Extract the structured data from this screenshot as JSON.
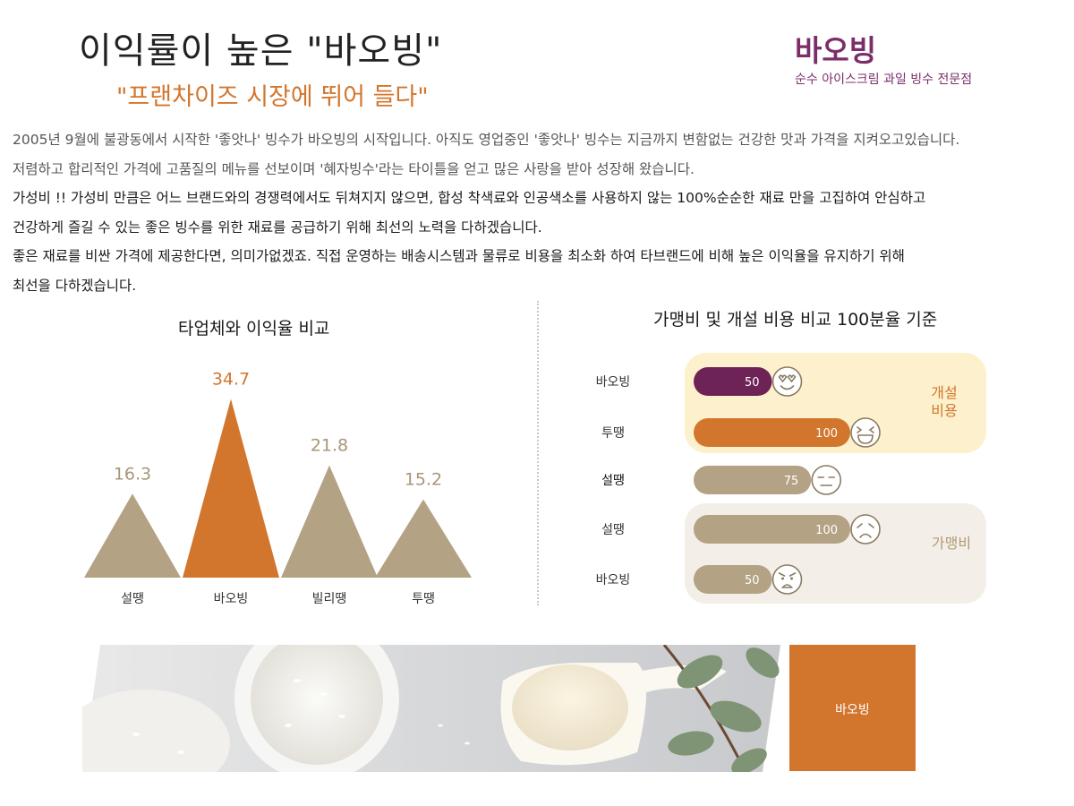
{
  "header": {
    "headline": "이익률이 높은 \"바오빙\"",
    "subheadline": "\"프랜차이즈 시장에 뛰어 들다\"",
    "brand_name": "바오빙",
    "brand_tagline": "순수 아이스크림 과일 빙수 전문점"
  },
  "intro_lines": [
    "2005년 9월에 불광동에서 시작한 '좋앗나' 빙수가 바오빙의 시작입니다. 아직도 영업중인 '좋앗나' 빙수는 지금까지 변함없는 건강한 맛과 가격을 지켜오고있습니다.",
    "저렴하고 합리적인 가격에 고품질의 메뉴를 선보이며 '혜자빙수'라는 타이틀을 얻고 많은 사랑을 받아 성장해 왔습니다.",
    "가성비 !! 가성비 만큼은 어느 브랜드와의 경쟁력에서도 뒤쳐지지 않으면, 합성 착색료와 인공색소를 사용하지 않는 100%순순한 재료 만을 고집하여 안심하고",
    "건강하게 즐길 수 있는 좋은 빙수를 위한 재료를 공급하기 위해 최선의 노력을 다하겠습니다.",
    "좋은 재료를 비싼 가격에 제공한다면, 의미가없겠죠. 직접 운영하는 배송시스템과 물류로 비용을 최소화 하여 타브랜드에 비해 높은 이익율을 유지하기 위해",
    "최선을 다하겠습니다."
  ],
  "colors": {
    "accent": "#d2762e",
    "brand_purple": "#7b2e6a",
    "bar_purple": "#6e2357",
    "tan": "#b3a283",
    "cream_bg": "#fcf1cc",
    "beige_bg": "#f3efe8"
  },
  "chart_data": [
    {
      "type": "bar",
      "title": "타업체와 이익율 비교",
      "categories": [
        "설땡",
        "바오빙",
        "빌리땡",
        "투땡"
      ],
      "values": [
        16.3,
        34.7,
        21.8,
        15.2
      ],
      "highlight": "바오빙",
      "xlabel": "",
      "ylabel": "",
      "grid": false,
      "ylim": [
        0,
        40
      ]
    },
    {
      "type": "bar",
      "orientation": "horizontal",
      "title": "가맹비 및 개설 비용 비교 100분율 기준",
      "groups": [
        {
          "name": "개설 비용",
          "items": [
            {
              "label": "바오빙",
              "value": 50,
              "icon": "heart-eyes-face-icon",
              "color": "#6e2357"
            },
            {
              "label": "투땡",
              "value": 100,
              "icon": "laughing-face-icon",
              "color": "#d2762e"
            }
          ]
        },
        {
          "name": "",
          "items": [
            {
              "label": "설땡",
              "value": 75,
              "icon": "neutral-face-icon",
              "color": "#b3a283"
            }
          ]
        },
        {
          "name": "가맹비",
          "items": [
            {
              "label": "설땡",
              "value": 100,
              "icon": "sad-face-icon",
              "color": "#b3a283"
            },
            {
              "label": "바오빙",
              "value": 50,
              "icon": "angry-face-icon",
              "color": "#b3a283"
            }
          ]
        }
      ],
      "grid": false
    }
  ],
  "footer": {
    "photo_icon": "rice-and-milk-photo",
    "block_label": "바오빙"
  }
}
